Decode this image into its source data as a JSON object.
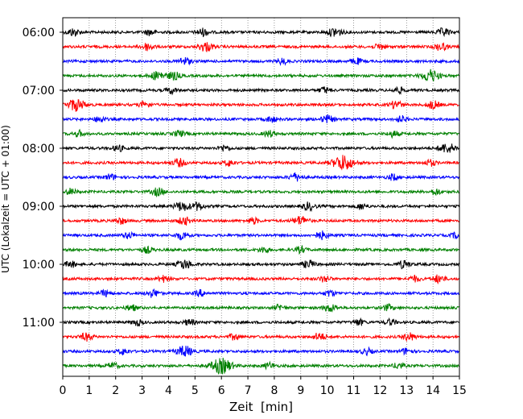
{
  "chart_data": {
    "type": "line",
    "title": "",
    "xlabel": "Zeit  [min]",
    "ylabel": "UTC (Lokalzeit = UTC + 01:00)",
    "xlim": [
      0,
      15
    ],
    "x_ticks": [
      0,
      1,
      2,
      3,
      4,
      5,
      6,
      7,
      8,
      9,
      10,
      11,
      12,
      13,
      14,
      15
    ],
    "y_tick_labels": [
      "06:00",
      "07:00",
      "08:00",
      "09:00",
      "10:00",
      "11:00"
    ],
    "grid": "vertical-dotted",
    "legend": "none",
    "row_interval_min": 15,
    "trace_colors": [
      "#000000",
      "#ff0000",
      "#0000ff",
      "#008000"
    ],
    "series": [
      {
        "start": "06:00",
        "color": "#000000",
        "events": [
          [
            0.4,
            0.5
          ],
          [
            3.3,
            0.4
          ],
          [
            5.3,
            0.5
          ],
          [
            10.3,
            0.6
          ],
          [
            14.4,
            0.5
          ]
        ]
      },
      {
        "start": "06:15",
        "color": "#ff0000",
        "events": [
          [
            3.2,
            0.5
          ],
          [
            5.4,
            0.6
          ],
          [
            12.0,
            0.4
          ],
          [
            14.3,
            0.5
          ]
        ]
      },
      {
        "start": "06:30",
        "color": "#0000ff",
        "events": [
          [
            4.6,
            0.5
          ],
          [
            8.3,
            0.4
          ],
          [
            11.1,
            0.4
          ]
        ]
      },
      {
        "start": "06:45",
        "color": "#008000",
        "events": [
          [
            3.6,
            0.6
          ],
          [
            4.2,
            0.5
          ],
          [
            13.9,
            0.8
          ]
        ]
      },
      {
        "start": "07:00",
        "color": "#000000",
        "events": [
          [
            4.1,
            0.4
          ],
          [
            9.9,
            0.4
          ],
          [
            12.7,
            0.4
          ]
        ]
      },
      {
        "start": "07:15",
        "color": "#ff0000",
        "events": [
          [
            0.5,
            0.8
          ],
          [
            3.1,
            0.4
          ],
          [
            12.6,
            0.5
          ],
          [
            14.0,
            0.5
          ]
        ]
      },
      {
        "start": "07:30",
        "color": "#0000ff",
        "events": [
          [
            1.4,
            0.4
          ],
          [
            7.9,
            0.4
          ],
          [
            10.0,
            0.5
          ],
          [
            12.8,
            0.4
          ]
        ]
      },
      {
        "start": "07:45",
        "color": "#008000",
        "events": [
          [
            0.6,
            0.4
          ],
          [
            4.4,
            0.4
          ],
          [
            7.8,
            0.4
          ],
          [
            12.5,
            0.4
          ]
        ]
      },
      {
        "start": "08:00",
        "color": "#000000",
        "events": [
          [
            2.1,
            0.4
          ],
          [
            6.1,
            0.4
          ],
          [
            14.4,
            0.5
          ],
          [
            14.7,
            0.4
          ]
        ]
      },
      {
        "start": "08:15",
        "color": "#ff0000",
        "events": [
          [
            4.4,
            0.5
          ],
          [
            6.3,
            0.4
          ],
          [
            10.6,
            1.0
          ],
          [
            13.9,
            0.4
          ]
        ]
      },
      {
        "start": "08:30",
        "color": "#0000ff",
        "events": [
          [
            1.8,
            0.4
          ],
          [
            8.8,
            0.5
          ],
          [
            12.5,
            0.4
          ]
        ]
      },
      {
        "start": "08:45",
        "color": "#008000",
        "events": [
          [
            0.3,
            0.4
          ],
          [
            3.6,
            0.5
          ],
          [
            14.1,
            0.4
          ]
        ]
      },
      {
        "start": "09:00",
        "color": "#000000",
        "events": [
          [
            4.5,
            0.6
          ],
          [
            5.1,
            0.5
          ],
          [
            9.3,
            0.5
          ],
          [
            11.3,
            0.4
          ]
        ]
      },
      {
        "start": "09:15",
        "color": "#ff0000",
        "events": [
          [
            2.2,
            0.4
          ],
          [
            4.6,
            0.5
          ],
          [
            7.2,
            0.4
          ],
          [
            9.0,
            0.6
          ]
        ]
      },
      {
        "start": "09:30",
        "color": "#0000ff",
        "events": [
          [
            2.5,
            0.4
          ],
          [
            4.5,
            0.5
          ],
          [
            9.8,
            0.5
          ],
          [
            14.9,
            0.4
          ]
        ]
      },
      {
        "start": "09:45",
        "color": "#008000",
        "events": [
          [
            3.2,
            0.4
          ],
          [
            7.6,
            0.4
          ],
          [
            9.0,
            0.4
          ]
        ]
      },
      {
        "start": "10:00",
        "color": "#000000",
        "events": [
          [
            0.3,
            0.4
          ],
          [
            4.6,
            0.6
          ],
          [
            9.3,
            0.5
          ],
          [
            12.9,
            0.5
          ]
        ]
      },
      {
        "start": "10:15",
        "color": "#ff0000",
        "events": [
          [
            3.8,
            0.4
          ],
          [
            9.9,
            0.4
          ],
          [
            13.3,
            0.4
          ],
          [
            14.2,
            0.5
          ]
        ]
      },
      {
        "start": "10:30",
        "color": "#0000ff",
        "events": [
          [
            1.6,
            0.4
          ],
          [
            3.4,
            0.5
          ],
          [
            5.2,
            0.4
          ],
          [
            10.1,
            0.4
          ]
        ]
      },
      {
        "start": "10:45",
        "color": "#008000",
        "events": [
          [
            2.6,
            0.4
          ],
          [
            8.2,
            0.4
          ],
          [
            10.1,
            0.5
          ],
          [
            12.3,
            0.4
          ]
        ]
      },
      {
        "start": "11:00",
        "color": "#000000",
        "events": [
          [
            2.8,
            0.4
          ],
          [
            4.8,
            0.4
          ],
          [
            11.2,
            0.4
          ],
          [
            12.4,
            0.4
          ]
        ]
      },
      {
        "start": "11:15",
        "color": "#ff0000",
        "events": [
          [
            0.9,
            0.5
          ],
          [
            6.5,
            0.4
          ],
          [
            9.7,
            0.5
          ],
          [
            13.1,
            0.5
          ]
        ]
      },
      {
        "start": "11:30",
        "color": "#0000ff",
        "events": [
          [
            2.3,
            0.4
          ],
          [
            4.6,
            0.7
          ],
          [
            11.5,
            0.4
          ],
          [
            13.0,
            0.4
          ]
        ]
      },
      {
        "start": "11:45",
        "color": "#008000",
        "events": [
          [
            1.9,
            0.4
          ],
          [
            6.0,
            1.0
          ],
          [
            7.8,
            0.4
          ],
          [
            12.7,
            0.4
          ]
        ]
      }
    ]
  }
}
